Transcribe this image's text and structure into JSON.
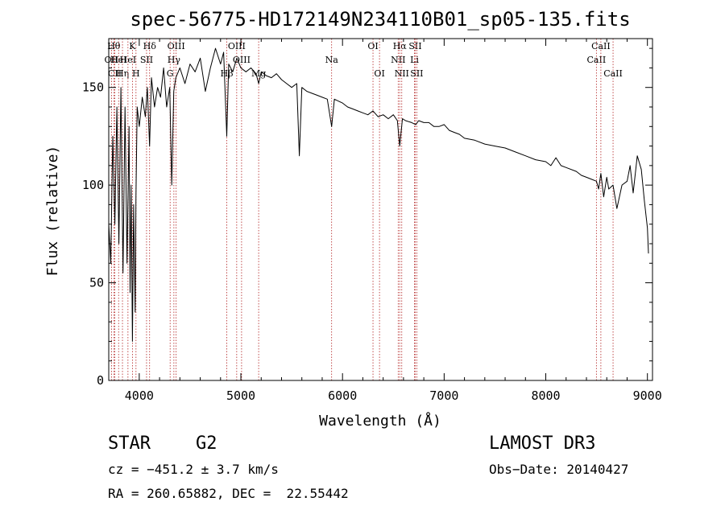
{
  "chart_data": {
    "type": "line",
    "title": "spec-56775-HD172149N234110B01_sp05-135.fits",
    "xlabel": "Wavelength (Å)",
    "ylabel": "Flux (relative)",
    "xlim": [
      3700,
      9050
    ],
    "ylim": [
      0,
      175
    ],
    "xticks": [
      4000,
      5000,
      6000,
      7000,
      8000,
      9000
    ],
    "yticks": [
      0,
      50,
      100,
      150
    ],
    "grid": false,
    "series": [
      {
        "name": "spectrum",
        "x": [
          3700,
          3720,
          3740,
          3760,
          3780,
          3800,
          3820,
          3840,
          3860,
          3880,
          3900,
          3910,
          3920,
          3933,
          3945,
          3960,
          3968,
          3980,
          4000,
          4030,
          4060,
          4080,
          4102,
          4120,
          4150,
          4180,
          4210,
          4240,
          4270,
          4300,
          4320,
          4340,
          4360,
          4400,
          4450,
          4500,
          4550,
          4600,
          4650,
          4700,
          4750,
          4800,
          4830,
          4861,
          4880,
          4920,
          4960,
          5000,
          5050,
          5100,
          5150,
          5175,
          5200,
          5250,
          5300,
          5350,
          5400,
          5450,
          5500,
          5550,
          5575,
          5600,
          5650,
          5700,
          5750,
          5800,
          5850,
          5893,
          5920,
          5960,
          6000,
          6050,
          6100,
          6150,
          6200,
          6250,
          6300,
          6350,
          6400,
          6450,
          6500,
          6540,
          6563,
          6590,
          6620,
          6680,
          6720,
          6750,
          6800,
          6850,
          6900,
          6950,
          7000,
          7050,
          7100,
          7150,
          7200,
          7300,
          7400,
          7500,
          7600,
          7700,
          7800,
          7900,
          8000,
          8050,
          8100,
          8150,
          8200,
          8300,
          8350,
          8400,
          8450,
          8498,
          8520,
          8542,
          8570,
          8600,
          8620,
          8662,
          8700,
          8750,
          8800,
          8830,
          8860,
          8900,
          8940,
          8970,
          9000,
          9010
        ],
        "values": [
          80,
          60,
          125,
          80,
          140,
          70,
          150,
          55,
          140,
          60,
          130,
          45,
          100,
          20,
          90,
          35,
          95,
          140,
          130,
          145,
          135,
          150,
          120,
          155,
          140,
          150,
          145,
          160,
          140,
          150,
          100,
          148,
          155,
          160,
          152,
          162,
          158,
          165,
          148,
          160,
          170,
          162,
          168,
          125,
          162,
          158,
          165,
          160,
          158,
          160,
          157,
          152,
          158,
          156,
          155,
          157,
          154,
          152,
          150,
          152,
          115,
          150,
          148,
          147,
          146,
          145,
          144,
          130,
          144,
          143,
          142,
          140,
          139,
          138,
          137,
          136,
          138,
          135,
          136,
          134,
          136,
          133,
          120,
          134,
          133,
          132,
          131,
          133,
          132,
          132,
          130,
          130,
          131,
          128,
          127,
          126,
          124,
          123,
          121,
          120,
          119,
          117,
          115,
          113,
          112,
          110,
          114,
          110,
          109,
          107,
          105,
          104,
          103,
          102,
          98,
          106,
          94,
          104,
          98,
          100,
          88,
          100,
          102,
          110,
          96,
          115,
          108,
          92,
          78,
          65
        ]
      }
    ],
    "lines": [
      {
        "wave": 3727,
        "label": "OII",
        "row": 2
      },
      {
        "wave": 3750,
        "label": "Hθ",
        "row": 1
      },
      {
        "wave": 3760,
        "label": "CII",
        "row": 3
      },
      {
        "wave": 3797,
        "label": "HeI",
        "row": 2
      },
      {
        "wave": 3835,
        "label": "Hη",
        "row": 3
      },
      {
        "wave": 3889,
        "label": "HeI",
        "row": 2
      },
      {
        "wave": 3933,
        "label": "K",
        "row": 1
      },
      {
        "wave": 3968,
        "label": "H",
        "row": 3
      },
      {
        "wave": 4072,
        "label": "SII",
        "row": 2
      },
      {
        "wave": 4102,
        "label": "Hδ",
        "row": 1
      },
      {
        "wave": 4304,
        "label": "G",
        "row": 3
      },
      {
        "wave": 4341,
        "label": "Hγ",
        "row": 2
      },
      {
        "wave": 4363,
        "label": "OIII",
        "row": 1
      },
      {
        "wave": 4861,
        "label": "Hβ",
        "row": 3
      },
      {
        "wave": 4959,
        "label": "OIII",
        "row": 1
      },
      {
        "wave": 5007,
        "label": "OIII",
        "row": 2
      },
      {
        "wave": 5175,
        "label": "Mg",
        "row": 3
      },
      {
        "wave": 5893,
        "label": "Na",
        "row": 2
      },
      {
        "wave": 6300,
        "label": "OI",
        "row": 1
      },
      {
        "wave": 6364,
        "label": "OI",
        "row": 3
      },
      {
        "wave": 6548,
        "label": "NII",
        "row": 2
      },
      {
        "wave": 6563,
        "label": "Hα",
        "row": 1
      },
      {
        "wave": 6583,
        "label": "NII",
        "row": 3
      },
      {
        "wave": 6708,
        "label": "Li",
        "row": 2
      },
      {
        "wave": 6716,
        "label": "SII",
        "row": 1
      },
      {
        "wave": 6731,
        "label": "SII",
        "row": 3
      },
      {
        "wave": 8498,
        "label": "CaII",
        "row": 2
      },
      {
        "wave": 8542,
        "label": "CaII",
        "row": 1
      },
      {
        "wave": 8662,
        "label": "CaII",
        "row": 3
      }
    ]
  },
  "info": {
    "object_class": "STAR",
    "subclass": "G2",
    "survey": "LAMOST DR3",
    "velocity": "cz = −451.2 ± 3.7 km/s",
    "obs_date": "Obs−Date: 20140427",
    "coords": "RA = 260.65882, DEC =  22.55442"
  }
}
